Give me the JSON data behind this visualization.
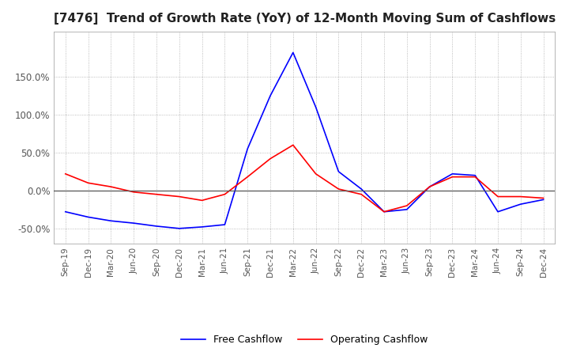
{
  "title": "[7476]  Trend of Growth Rate (YoY) of 12-Month Moving Sum of Cashflows",
  "title_fontsize": 11,
  "ylim": [
    -0.7,
    2.1
  ],
  "yticks": [
    -0.5,
    0.0,
    0.5,
    1.0,
    1.5
  ],
  "ytick_labels": [
    "-50.0%",
    "0.0%",
    "50.0%",
    "100.0%",
    "150.0%"
  ],
  "x_labels": [
    "Sep-19",
    "Dec-19",
    "Mar-20",
    "Jun-20",
    "Sep-20",
    "Dec-20",
    "Mar-21",
    "Jun-21",
    "Sep-21",
    "Dec-21",
    "Mar-22",
    "Jun-22",
    "Sep-22",
    "Dec-22",
    "Mar-23",
    "Jun-23",
    "Sep-23",
    "Dec-23",
    "Mar-24",
    "Jun-24",
    "Sep-24",
    "Dec-24"
  ],
  "operating_cashflow": [
    0.22,
    0.1,
    0.05,
    -0.02,
    -0.05,
    -0.08,
    -0.13,
    -0.05,
    0.18,
    0.42,
    0.6,
    0.22,
    0.02,
    -0.05,
    -0.28,
    -0.2,
    0.05,
    0.18,
    0.18,
    -0.08,
    -0.08,
    -0.1
  ],
  "free_cashflow": [
    -0.28,
    -0.35,
    -0.4,
    -0.43,
    -0.47,
    -0.5,
    -0.48,
    -0.45,
    0.55,
    1.25,
    1.82,
    1.1,
    0.25,
    0.02,
    -0.28,
    -0.25,
    0.05,
    0.22,
    0.2,
    -0.28,
    -0.18,
    -0.12
  ],
  "operating_color": "#ff0000",
  "free_color": "#0000ff",
  "background_color": "#ffffff",
  "grid_color": "#aaaaaa",
  "legend_labels": [
    "Operating Cashflow",
    "Free Cashflow"
  ]
}
